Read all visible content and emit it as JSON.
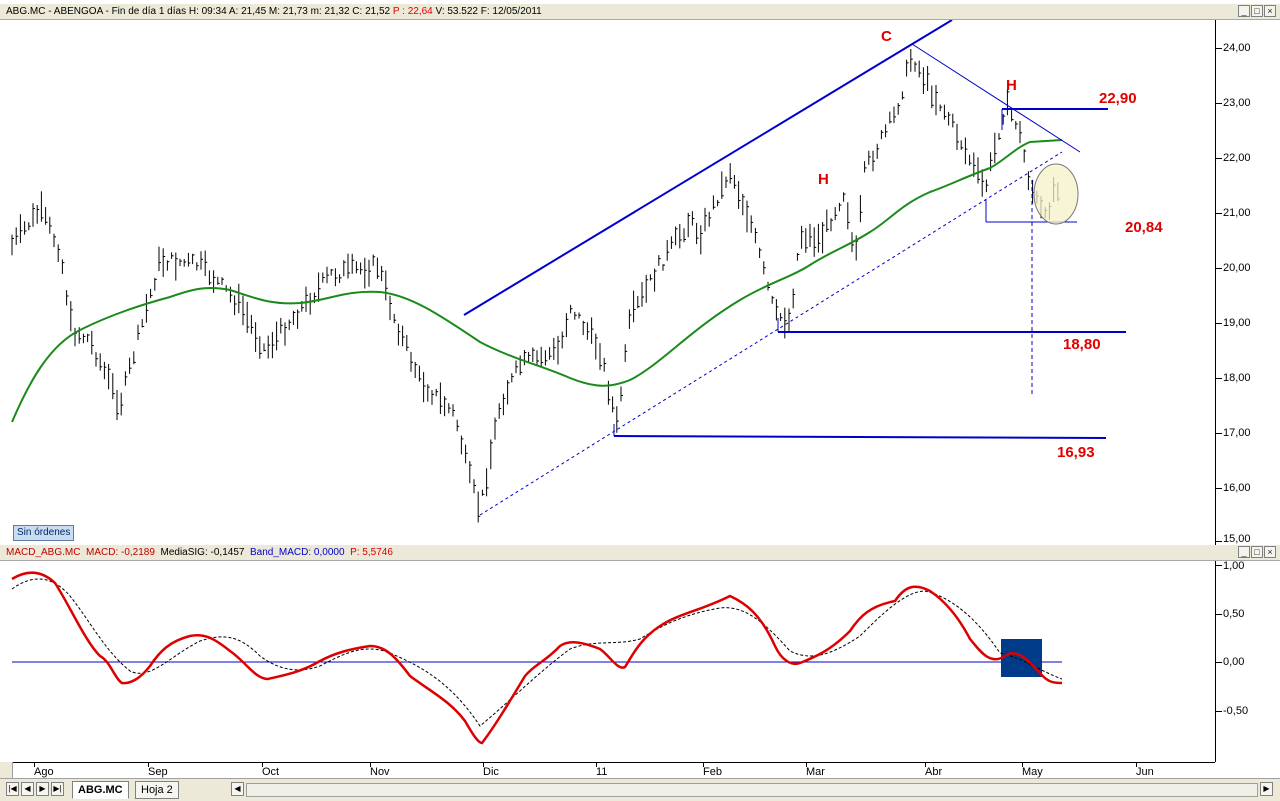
{
  "top_panel": {
    "header": "ABG.MC - ABENGOA - Fin de día 1 días  H: 09:34  A: 21,45  M: 21,73  m: 21,32  C: 21,52",
    "header_p": "P : 22,64",
    "header_rest": "V: 53.522  F: 12/05/2011",
    "y_labels": [
      "24,00",
      "23,00",
      "22,00",
      "21,00",
      "20,00",
      "19,00",
      "18,00",
      "17,00",
      "16,00",
      "15,00"
    ],
    "pattern_labels": {
      "c": "C",
      "h1": "H",
      "h2": "H"
    },
    "levels": {
      "l2290": "22,90",
      "l2084": "20,84",
      "l1880": "18,80",
      "l1693": "16,93"
    },
    "sin_ordenes": "Sin órdenes"
  },
  "macd_panel": {
    "name": "MACD_ABG.MC",
    "macd_label": "MACD: -0,2189",
    "sig_label": "MediaSIG: -0,1457",
    "band_label": "Band_MACD: 0,0000",
    "p_label": "P: 5,5746",
    "y_labels": [
      "1,00",
      "0,50",
      "0,00",
      "-0,50"
    ]
  },
  "time_axis": {
    "months": [
      "Ago",
      "Sep",
      "Oct",
      "Nov",
      "Dic",
      "11",
      "Feb",
      "Mar",
      "Abr",
      "May",
      "Jun"
    ]
  },
  "tabs": [
    {
      "label": "ABG.MC"
    },
    {
      "label": "Hoja 2"
    }
  ],
  "window_buttons": {
    "min": "_",
    "max": "□",
    "close": "×"
  },
  "nav": {
    "first": "|◀",
    "prev": "◀",
    "next": "▶",
    "last": "▶|"
  },
  "colors": {
    "price_bars": "#000000",
    "moving_average": "#1a8a1a",
    "trend_lines": "#0000cc",
    "macd": "#dd0000",
    "signal": "#000000",
    "labels": "#e00000",
    "highlight_box": "#003b8a"
  }
}
